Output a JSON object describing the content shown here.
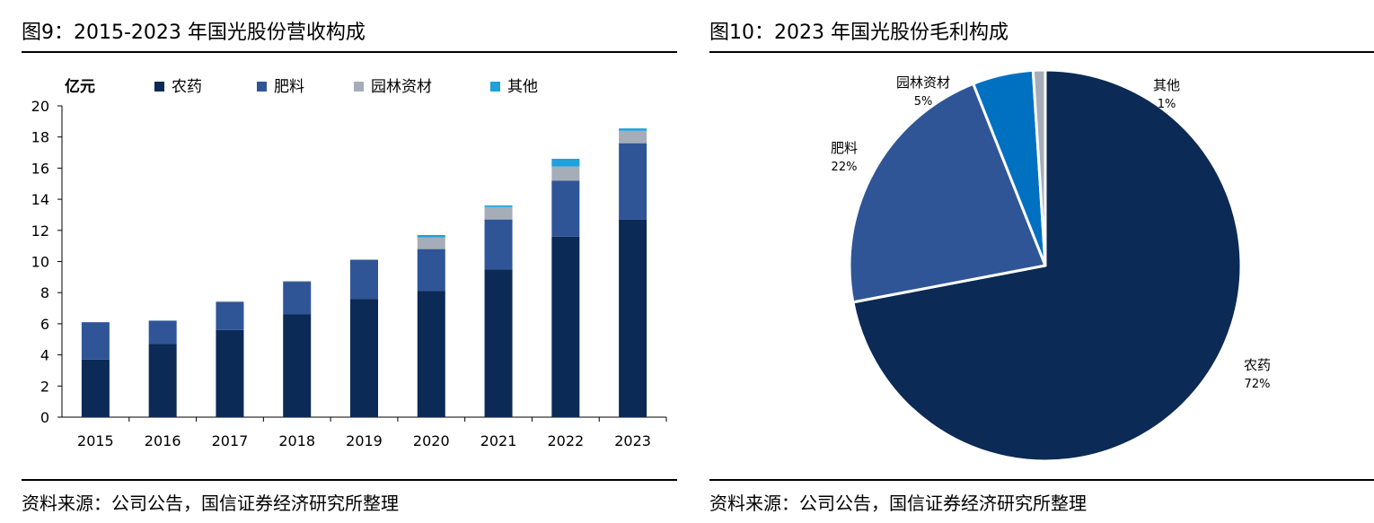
{
  "left": {
    "title": "图9：2015-2023 年国光股份营收构成",
    "source": "资料来源：公司公告，国信证券经济研究所整理"
  },
  "right": {
    "title": "图10：2023 年国光股份毛利构成",
    "source": "资料来源：公司公告，国信证券经济研究所整理"
  },
  "colors": {
    "农药": "#0b2a55",
    "肥料": "#2f5597",
    "园林资材": "#a5adb8",
    "其他": "#1ea1dc",
    "pie_园林资材": "#0070c0",
    "pie_其他": "#a5adb8"
  },
  "chart_data": [
    {
      "type": "bar",
      "stacked": true,
      "unit_label": "亿元",
      "categories": [
        "2015",
        "2016",
        "2017",
        "2018",
        "2019",
        "2020",
        "2021",
        "2022",
        "2023"
      ],
      "series": [
        {
          "name": "农药",
          "values": [
            3.7,
            4.7,
            5.6,
            6.6,
            7.6,
            8.1,
            9.5,
            11.6,
            12.7
          ]
        },
        {
          "name": "肥料",
          "values": [
            2.4,
            1.5,
            1.8,
            2.1,
            2.5,
            2.7,
            3.2,
            3.6,
            4.9
          ]
        },
        {
          "name": "园林资材",
          "values": [
            0.0,
            0.0,
            0.05,
            0.05,
            0.05,
            0.75,
            0.8,
            0.9,
            0.8
          ]
        },
        {
          "name": "其他",
          "values": [
            0.0,
            0.0,
            0.0,
            0.0,
            0.0,
            0.15,
            0.1,
            0.5,
            0.15
          ]
        }
      ],
      "ylim": [
        0,
        20
      ],
      "yticks": [
        0,
        2,
        4,
        6,
        8,
        10,
        12,
        14,
        16,
        18,
        20
      ],
      "legend": "top"
    },
    {
      "type": "pie",
      "slices": [
        {
          "name": "农药",
          "value": 72,
          "label": "72%"
        },
        {
          "name": "肥料",
          "value": 22,
          "label": "22%"
        },
        {
          "name": "园林资材",
          "value": 5,
          "label": "5%"
        },
        {
          "name": "其他",
          "value": 1,
          "label": "1%"
        }
      ]
    }
  ]
}
